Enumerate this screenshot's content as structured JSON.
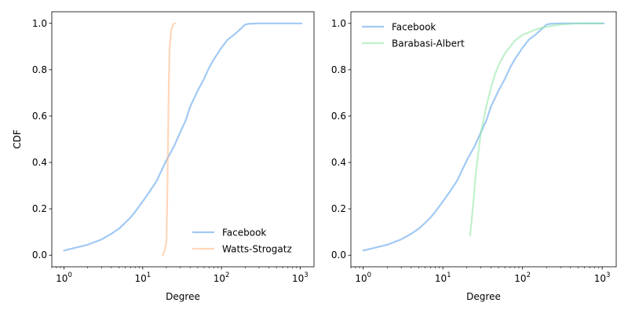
{
  "chart_data": [
    {
      "type": "line",
      "xscale": "log",
      "xlabel": "Degree",
      "ylabel": "CDF",
      "xlim": [
        0.7,
        1500
      ],
      "ylim": [
        -0.05,
        1.05
      ],
      "xticks": [
        {
          "value": 1,
          "mant": "10",
          "exp": "0"
        },
        {
          "value": 10,
          "mant": "10",
          "exp": "1"
        },
        {
          "value": 100,
          "mant": "10",
          "exp": "2"
        },
        {
          "value": 1000,
          "mant": "10",
          "exp": "3"
        }
      ],
      "yticks": [
        0.0,
        0.2,
        0.4,
        0.6,
        0.8,
        1.0
      ],
      "ytick_labels": [
        "0.0",
        "0.2",
        "0.4",
        "0.6",
        "0.8",
        "1.0"
      ],
      "grid": false,
      "legend": "lower-right",
      "series": [
        {
          "name": "Facebook",
          "color": "#a1c9f4",
          "x": [
            1,
            2,
            3,
            4,
            5,
            6,
            7,
            8,
            10,
            12,
            15,
            20,
            25,
            30,
            35,
            40,
            50,
            60,
            70,
            80,
            100,
            120,
            150,
            200,
            220,
            300,
            500,
            1045
          ],
          "y": [
            0.02,
            0.045,
            0.068,
            0.092,
            0.115,
            0.14,
            0.163,
            0.187,
            0.232,
            0.27,
            0.32,
            0.41,
            0.47,
            0.53,
            0.58,
            0.64,
            0.71,
            0.76,
            0.81,
            0.845,
            0.895,
            0.93,
            0.955,
            0.995,
            0.998,
            1.0,
            1.0,
            1.0
          ]
        },
        {
          "name": "Watts-Strogatz",
          "color": "#ffb482",
          "x": [
            18,
            19,
            20,
            20.5,
            21,
            21.5,
            22,
            23,
            24,
            25,
            26
          ],
          "y": [
            0.0,
            0.02,
            0.06,
            0.25,
            0.5,
            0.75,
            0.9,
            0.97,
            0.99,
            1.0,
            1.0
          ]
        }
      ]
    },
    {
      "type": "line",
      "xscale": "log",
      "xlabel": "Degree",
      "ylabel": "",
      "xlim": [
        0.7,
        1500
      ],
      "ylim": [
        -0.05,
        1.05
      ],
      "xticks": [
        {
          "value": 1,
          "mant": "10",
          "exp": "0"
        },
        {
          "value": 10,
          "mant": "10",
          "exp": "1"
        },
        {
          "value": 100,
          "mant": "10",
          "exp": "2"
        },
        {
          "value": 1000,
          "mant": "10",
          "exp": "3"
        }
      ],
      "yticks": [
        0.0,
        0.2,
        0.4,
        0.6,
        0.8,
        1.0
      ],
      "ytick_labels": [
        "0.0",
        "0.2",
        "0.4",
        "0.6",
        "0.8",
        "1.0"
      ],
      "grid": false,
      "legend": "upper-left",
      "series": [
        {
          "name": "Facebook",
          "color": "#a1c9f4",
          "x": [
            1,
            2,
            3,
            4,
            5,
            6,
            7,
            8,
            10,
            12,
            15,
            20,
            25,
            30,
            35,
            40,
            50,
            60,
            70,
            80,
            100,
            120,
            150,
            200,
            220,
            300,
            500,
            1045
          ],
          "y": [
            0.02,
            0.045,
            0.068,
            0.092,
            0.115,
            0.14,
            0.163,
            0.187,
            0.232,
            0.27,
            0.32,
            0.41,
            0.47,
            0.53,
            0.58,
            0.64,
            0.71,
            0.76,
            0.81,
            0.845,
            0.895,
            0.93,
            0.955,
            0.995,
            0.998,
            1.0,
            1.0,
            1.0
          ]
        },
        {
          "name": "Barabasi-Albert",
          "color": "#8de5a1",
          "x": [
            22,
            24,
            26,
            28,
            30,
            35,
            40,
            45,
            50,
            60,
            70,
            80,
            100,
            150,
            200,
            300,
            500,
            1000
          ],
          "y": [
            0.085,
            0.22,
            0.36,
            0.45,
            0.53,
            0.64,
            0.72,
            0.78,
            0.82,
            0.87,
            0.9,
            0.925,
            0.95,
            0.975,
            0.985,
            0.995,
            1.0,
            1.0
          ]
        }
      ]
    }
  ]
}
